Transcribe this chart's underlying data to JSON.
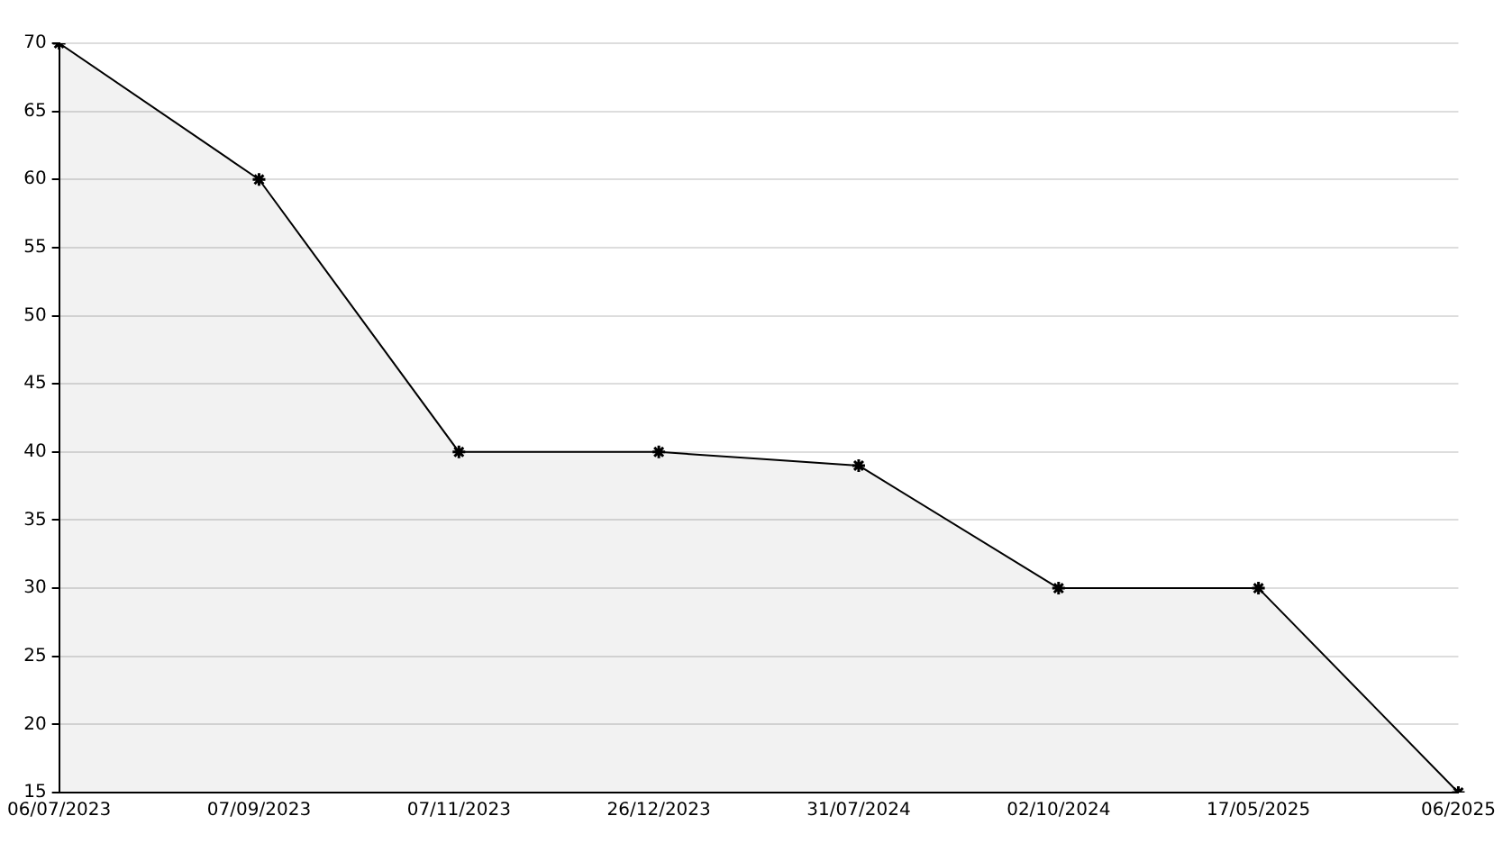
{
  "chart_data": {
    "type": "area",
    "categories": [
      "06/07/2023",
      "07/09/2023",
      "07/11/2023",
      "26/12/2023",
      "31/07/2024",
      "02/10/2024",
      "17/05/2025",
      "06/2025"
    ],
    "series": [
      {
        "color": "#000000",
        "values": [
          70,
          60,
          40,
          40,
          39,
          30,
          30,
          15
        ]
      }
    ],
    "ylim": [
      15,
      70
    ],
    "yticks": [
      15,
      20,
      25,
      30,
      35,
      40,
      45,
      50,
      55,
      60,
      65,
      70
    ],
    "grid": "y",
    "legend": false,
    "marker": "cross",
    "line_style": "solid"
  }
}
